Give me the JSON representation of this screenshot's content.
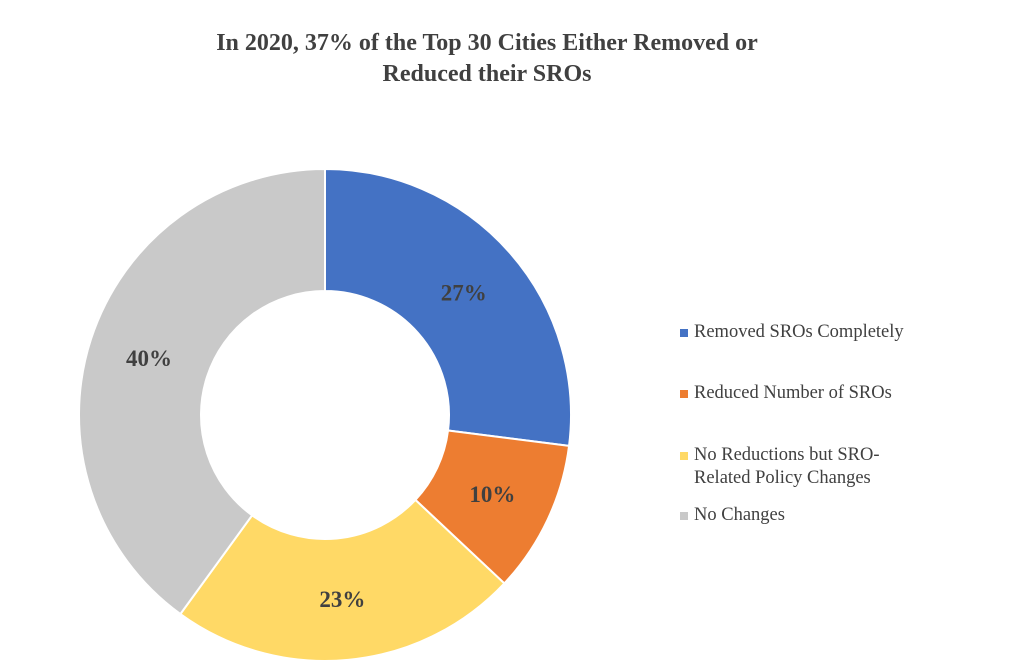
{
  "chart_data": {
    "type": "pie",
    "variant": "donut",
    "title": [
      "In 2020, 37% of the Top 30 Cities Either Removed or",
      "Reduced their SROs"
    ],
    "categories": [
      "Removed SROs Completely",
      "Reduced Number of SROs",
      "No Reductions but SRO-Related Policy Changes",
      "No Changes"
    ],
    "legend_lines": [
      [
        "Removed SROs Completely"
      ],
      [
        "Reduced Number of SROs"
      ],
      [
        "No Reductions but SRO-",
        "Related Policy Changes"
      ],
      [
        "No Changes"
      ]
    ],
    "values": [
      27,
      10,
      23,
      40
    ],
    "data_labels": [
      "27%",
      "10%",
      "23%",
      "40%"
    ],
    "colors": [
      "#4472C4",
      "#ED7D31",
      "#FFD966",
      "#C9C9C9"
    ],
    "legend_position": "right"
  }
}
